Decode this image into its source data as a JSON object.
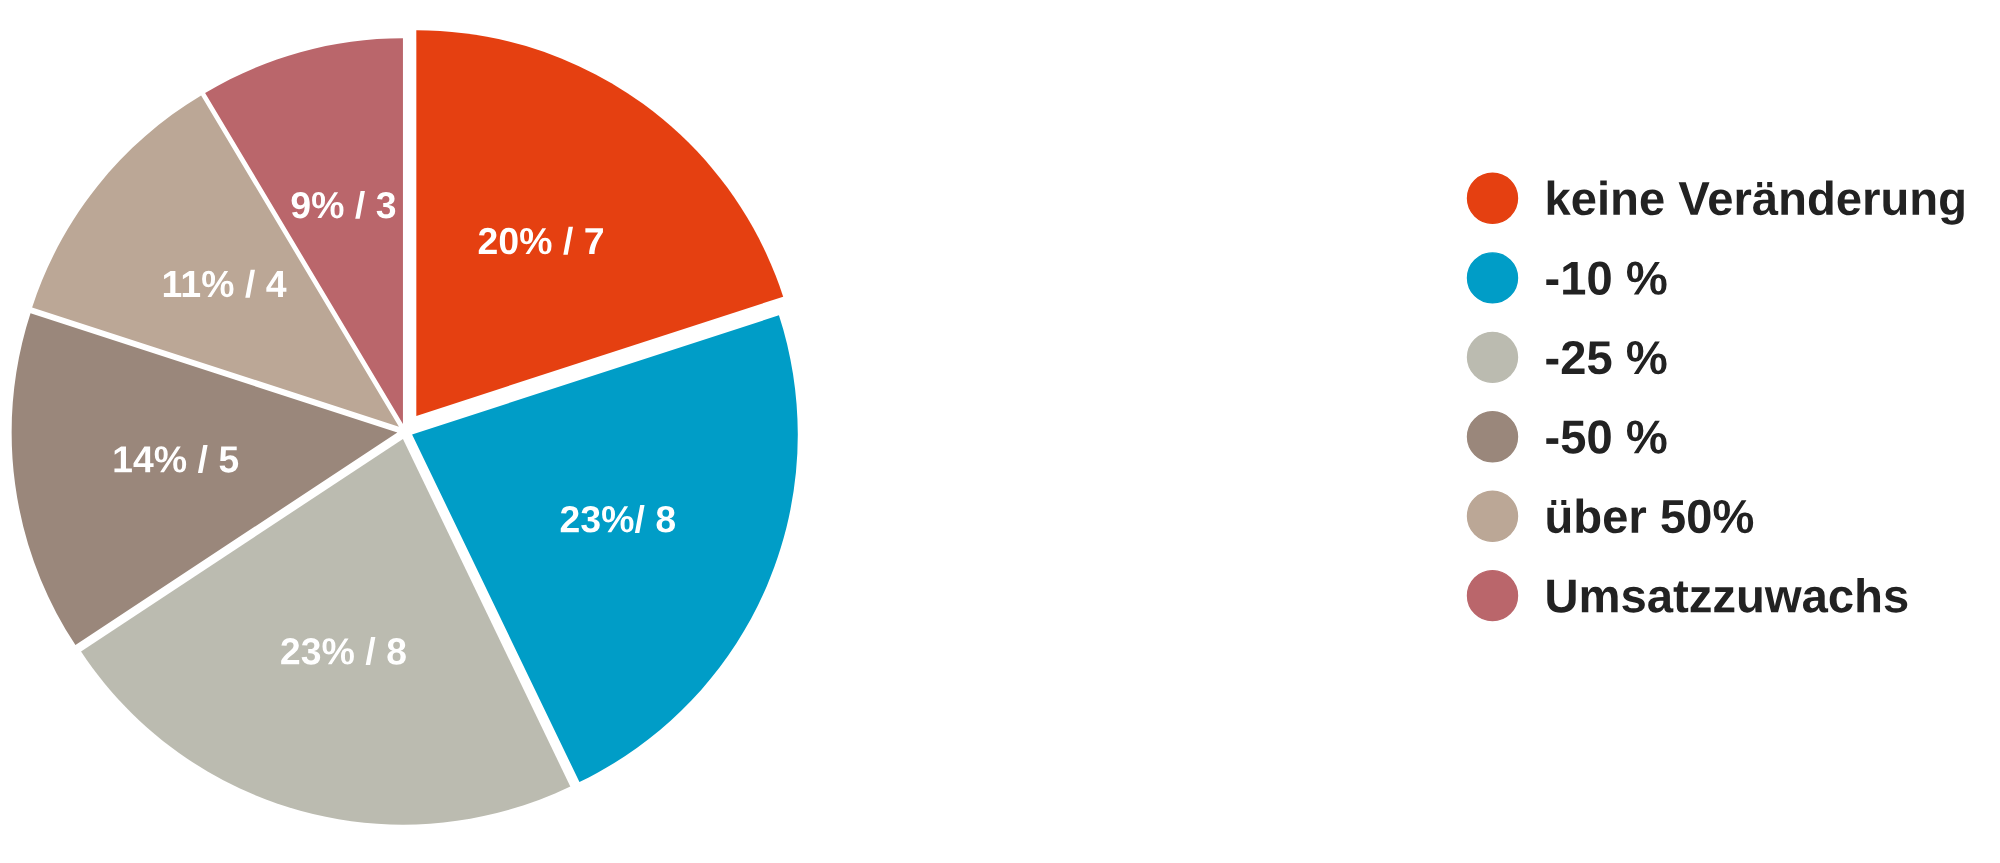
{
  "chart_data": {
    "type": "pie",
    "categories": [
      "keine Veränderung",
      "-10 %",
      "-25 %",
      "-50 %",
      "über 50%",
      "Umsatzzuwachs"
    ],
    "values": [
      7,
      8,
      8,
      5,
      4,
      3
    ],
    "colors": [
      "#e54011",
      "#009dc7",
      "#bbbbb0",
      "#9a877b",
      "#bba796",
      "#ba666b"
    ],
    "value_labels": [
      "20% / 7",
      "23%/ 8",
      "23% / 8",
      "14% / 5",
      "11% / 4",
      "9% / 3"
    ],
    "legend": "right"
  }
}
